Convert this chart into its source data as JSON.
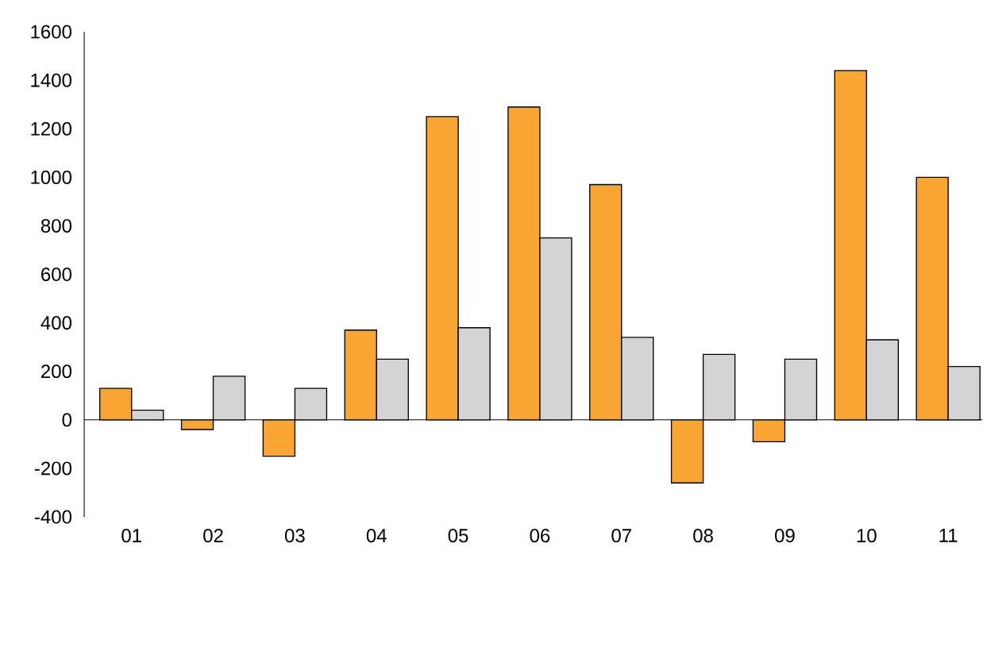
{
  "chart_data": {
    "type": "bar",
    "categories": [
      "01",
      "02",
      "03",
      "04",
      "05",
      "06",
      "07",
      "08",
      "09",
      "10",
      "11"
    ],
    "series": [
      {
        "color": "#f9a533",
        "values": [
          130,
          -40,
          -150,
          370,
          1250,
          1290,
          970,
          -260,
          -90,
          1440,
          1000
        ]
      },
      {
        "color": "#d4d4d4",
        "values": [
          40,
          180,
          130,
          250,
          380,
          750,
          340,
          270,
          250,
          330,
          220
        ]
      }
    ],
    "ylim": [
      -400,
      1600
    ],
    "yticks": [
      -400,
      -200,
      0,
      200,
      400,
      600,
      800,
      1000,
      1200,
      1400,
      1600
    ]
  }
}
